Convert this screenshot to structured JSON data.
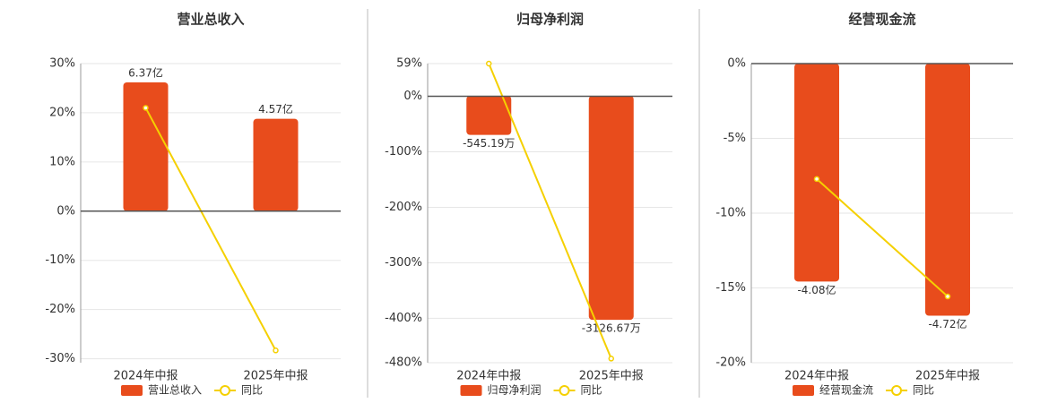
{
  "chart_data": [
    {
      "type": "bar",
      "title": "营业总收入",
      "categories": [
        "2024年中报",
        "2025年中报"
      ],
      "ylim": [
        -30.8,
        30
      ],
      "yticks": [
        {
          "value": 30,
          "label": "30%"
        },
        {
          "value": 20,
          "label": "20%"
        },
        {
          "value": 10,
          "label": "10%"
        },
        {
          "value": 0,
          "label": "0%"
        },
        {
          "value": -10,
          "label": "-10%"
        },
        {
          "value": -20,
          "label": "-20%"
        },
        {
          "value": -30,
          "label": "-30%"
        }
      ],
      "y2lim": [
        -7.5,
        7.3
      ],
      "grid": true,
      "series": [
        {
          "name": "营业总收入",
          "color": "#e84c1c",
          "axis": "y2",
          "values": [
            6.37,
            4.57
          ],
          "value_labels": [
            "6.37亿",
            "4.57亿"
          ]
        },
        {
          "name": "同比",
          "color": "#f5d000",
          "type": "line",
          "values": [
            21.0,
            -28.3
          ]
        }
      ]
    },
    {
      "type": "bar",
      "title": "归母净利润",
      "categories": [
        "2024年中报",
        "2025年中报"
      ],
      "ylim": [
        -480,
        59
      ],
      "yticks": [
        {
          "value": 59,
          "label": "59%"
        },
        {
          "value": 0,
          "label": "0%"
        },
        {
          "value": -100,
          "label": "-100%"
        },
        {
          "value": -200,
          "label": "-200%"
        },
        {
          "value": -300,
          "label": "-300%"
        },
        {
          "value": -400,
          "label": "-400%"
        },
        {
          "value": -480,
          "label": "-480%"
        }
      ],
      "y2lim": [
        -3725,
        450
      ],
      "grid": true,
      "series": [
        {
          "name": "归母净利润",
          "color": "#e84c1c",
          "axis": "y2",
          "values": [
            -545.19,
            -3126.67
          ],
          "value_labels": [
            "-545.19万",
            "-3126.67万"
          ]
        },
        {
          "name": "同比",
          "color": "#f5d000",
          "type": "line",
          "values": [
            59,
            -472.6
          ]
        }
      ]
    },
    {
      "type": "bar",
      "title": "经营现金流",
      "categories": [
        "2024年中报",
        "2025年中报"
      ],
      "ylim": [
        -20,
        0
      ],
      "yticks": [
        {
          "value": 0,
          "label": "0%"
        },
        {
          "value": -5,
          "label": "-5%"
        },
        {
          "value": -10,
          "label": "-10%"
        },
        {
          "value": -15,
          "label": "-15%"
        },
        {
          "value": -20,
          "label": "-20%"
        }
      ],
      "y2lim": [
        -5.6,
        0
      ],
      "grid": true,
      "series": [
        {
          "name": "经营现金流",
          "color": "#e84c1c",
          "axis": "y2",
          "values": [
            -4.08,
            -4.72
          ],
          "value_labels": [
            "-4.08亿",
            "-4.72亿"
          ]
        },
        {
          "name": "同比",
          "color": "#f5d000",
          "type": "line",
          "values": [
            -7.72,
            -15.57
          ]
        }
      ]
    }
  ]
}
